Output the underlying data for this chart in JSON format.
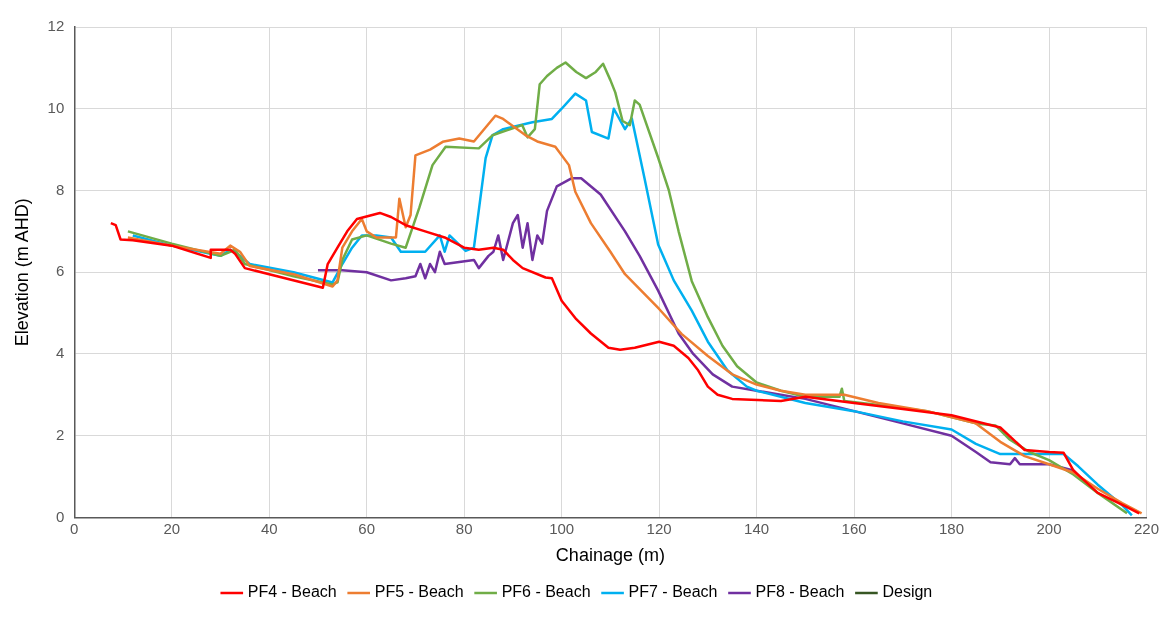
{
  "chart_data": {
    "type": "line",
    "xlabel": "Chainage (m)",
    "ylabel": "Elevation (m AHD)",
    "xlim": [
      0,
      220
    ],
    "xticks": [
      0,
      20,
      40,
      60,
      80,
      100,
      120,
      140,
      160,
      180,
      200,
      220
    ],
    "ylim": [
      0,
      12
    ],
    "yticks": [
      0,
      2,
      4,
      6,
      8,
      10,
      12
    ],
    "grid": true,
    "legend": "bottom",
    "marker": "none",
    "line_style": "solid",
    "series": [
      {
        "name": "PF4 - Beach",
        "color": "#ff0000",
        "x": [
          7.5,
          8.5,
          9.5,
          12,
          20,
          28,
          28,
          32,
          33,
          35,
          40,
          50,
          51,
          52,
          54,
          56,
          58,
          62.7,
          65,
          68,
          72,
          76,
          80,
          83,
          86,
          88,
          90,
          92,
          96.7,
          98,
          100,
          103,
          106,
          109.6,
          112,
          115,
          120,
          123,
          126,
          128,
          130,
          132,
          135,
          145,
          150,
          160,
          170,
          180,
          190,
          195,
          200,
          203,
          205,
          210,
          216,
          218.5
        ],
        "values": [
          7.2,
          7.15,
          6.8,
          6.78,
          6.65,
          6.35,
          6.55,
          6.55,
          6.45,
          6.1,
          5.95,
          5.65,
          5.62,
          6.2,
          6.6,
          7.0,
          7.3,
          7.45,
          7.35,
          7.15,
          7.0,
          6.85,
          6.6,
          6.55,
          6.6,
          6.55,
          6.3,
          6.1,
          5.87,
          5.85,
          5.3,
          4.85,
          4.5,
          4.15,
          4.1,
          4.15,
          4.3,
          4.2,
          3.9,
          3.6,
          3.2,
          3.0,
          2.9,
          2.85,
          2.95,
          2.8,
          2.65,
          2.5,
          2.2,
          1.65,
          1.6,
          1.58,
          1.15,
          0.6,
          0.25,
          0.1
        ]
      },
      {
        "name": "PF5 - Beach",
        "color": "#ed7d31",
        "x": [
          11,
          20,
          30,
          32,
          34,
          36,
          45,
          53,
          54,
          55,
          57,
          59,
          60,
          62,
          66,
          66.7,
          68,
          69,
          70,
          73,
          75.6,
          79,
          82,
          86.4,
          88,
          92.6,
          95,
          98.7,
          101.5,
          102.8,
          106,
          110,
          113,
          120,
          124.6,
          130,
          135,
          140,
          145,
          150,
          158,
          165,
          175,
          185,
          190,
          195,
          200,
          205,
          210,
          215,
          219
        ],
        "values": [
          6.85,
          6.65,
          6.45,
          6.65,
          6.5,
          6.15,
          5.95,
          5.65,
          5.8,
          6.6,
          7.0,
          7.3,
          7.0,
          6.85,
          6.85,
          7.8,
          7.1,
          7.4,
          8.86,
          9.0,
          9.19,
          9.27,
          9.2,
          9.83,
          9.75,
          9.35,
          9.2,
          9.07,
          8.62,
          7.97,
          7.2,
          6.5,
          5.95,
          5.1,
          4.49,
          3.95,
          3.5,
          3.25,
          3.1,
          3.0,
          3.0,
          2.8,
          2.6,
          2.3,
          1.85,
          1.5,
          1.3,
          1.1,
          0.7,
          0.35,
          0.1
        ]
      },
      {
        "name": "PF6 - Beach",
        "color": "#70ad47",
        "x": [
          11,
          20,
          30,
          33,
          35,
          45,
          53,
          54,
          55,
          57,
          60,
          65,
          68,
          70.8,
          73.5,
          76.2,
          83,
          85.8,
          91.9,
          93,
          94.5,
          95.5,
          97,
          99,
          100.8,
          103,
          105,
          107,
          108.5,
          110,
          111,
          112.5,
          114,
          115,
          116,
          119.8,
          122,
          124,
          126.7,
          130,
          133,
          136,
          140,
          145,
          150,
          157,
          157.5,
          158,
          165,
          175,
          185,
          189,
          192,
          196,
          200,
          205,
          210,
          216
        ],
        "values": [
          7.0,
          6.7,
          6.4,
          6.55,
          6.2,
          5.9,
          5.7,
          5.75,
          6.3,
          6.8,
          6.9,
          6.7,
          6.6,
          7.58,
          8.62,
          9.07,
          9.03,
          9.35,
          9.6,
          9.3,
          9.5,
          10.6,
          10.8,
          11.0,
          11.13,
          10.9,
          10.75,
          10.9,
          11.1,
          10.7,
          10.4,
          9.7,
          9.6,
          10.2,
          10.1,
          8.8,
          8.0,
          7.0,
          5.78,
          4.9,
          4.2,
          3.7,
          3.3,
          3.1,
          2.95,
          2.95,
          3.15,
          2.85,
          2.75,
          2.6,
          2.3,
          2.25,
          1.9,
          1.6,
          1.4,
          1.05,
          0.6,
          0.1
        ]
      },
      {
        "name": "PF7 - Beach",
        "color": "#00b0f0",
        "x": [
          12,
          20,
          30,
          32,
          34,
          36,
          45,
          53,
          55,
          57,
          59,
          62,
          65,
          67,
          72,
          75,
          76,
          77,
          80.3,
          82,
          84.4,
          85.8,
          88,
          94,
          98,
          100,
          102.8,
          105,
          106.2,
          109.6,
          110.7,
          113,
          114.4,
          117,
          119.8,
          123,
          126.7,
          130,
          134,
          138,
          140,
          150,
          160,
          170,
          180,
          185,
          190,
          200,
          203,
          206,
          210,
          215,
          217
        ],
        "values": [
          6.9,
          6.65,
          6.4,
          6.55,
          6.4,
          6.2,
          6.0,
          5.75,
          6.2,
          6.6,
          6.9,
          6.9,
          6.85,
          6.5,
          6.5,
          6.9,
          6.5,
          6.9,
          6.52,
          6.6,
          8.79,
          9.35,
          9.5,
          9.67,
          9.75,
          10.0,
          10.37,
          10.2,
          9.43,
          9.27,
          10.0,
          9.5,
          9.76,
          8.3,
          6.68,
          5.8,
          5.06,
          4.3,
          3.6,
          3.2,
          3.1,
          2.8,
          2.6,
          2.35,
          2.15,
          1.8,
          1.55,
          1.55,
          1.55,
          1.25,
          0.8,
          0.3,
          0.05
        ]
      },
      {
        "name": "PF8 - Beach",
        "color": "#7030a0",
        "x": [
          50,
          55,
          60,
          65,
          68,
          70,
          71,
          72,
          73,
          74,
          75,
          76,
          82,
          83,
          85,
          86,
          87,
          88,
          90,
          91,
          92,
          93,
          94,
          95,
          96,
          97,
          99,
          102.1,
          104,
          108,
          113,
          116,
          119.8,
          124,
          127,
          131,
          135,
          140,
          150,
          160,
          170,
          180,
          185,
          188,
          192,
          193,
          194,
          200,
          205,
          207
        ],
        "values": [
          6.05,
          6.05,
          6.0,
          5.8,
          5.85,
          5.9,
          6.2,
          5.85,
          6.2,
          6.0,
          6.5,
          6.2,
          6.3,
          6.1,
          6.4,
          6.5,
          6.9,
          6.3,
          7.2,
          7.4,
          6.6,
          7.2,
          6.3,
          6.9,
          6.7,
          7.5,
          8.1,
          8.3,
          8.3,
          7.9,
          7.0,
          6.4,
          5.55,
          4.5,
          4.0,
          3.5,
          3.2,
          3.1,
          2.9,
          2.6,
          2.3,
          2.0,
          1.6,
          1.35,
          1.3,
          1.45,
          1.3,
          1.3,
          1.15,
          0.9
        ]
      },
      {
        "name": "Design",
        "color": "#375623"
      }
    ]
  }
}
